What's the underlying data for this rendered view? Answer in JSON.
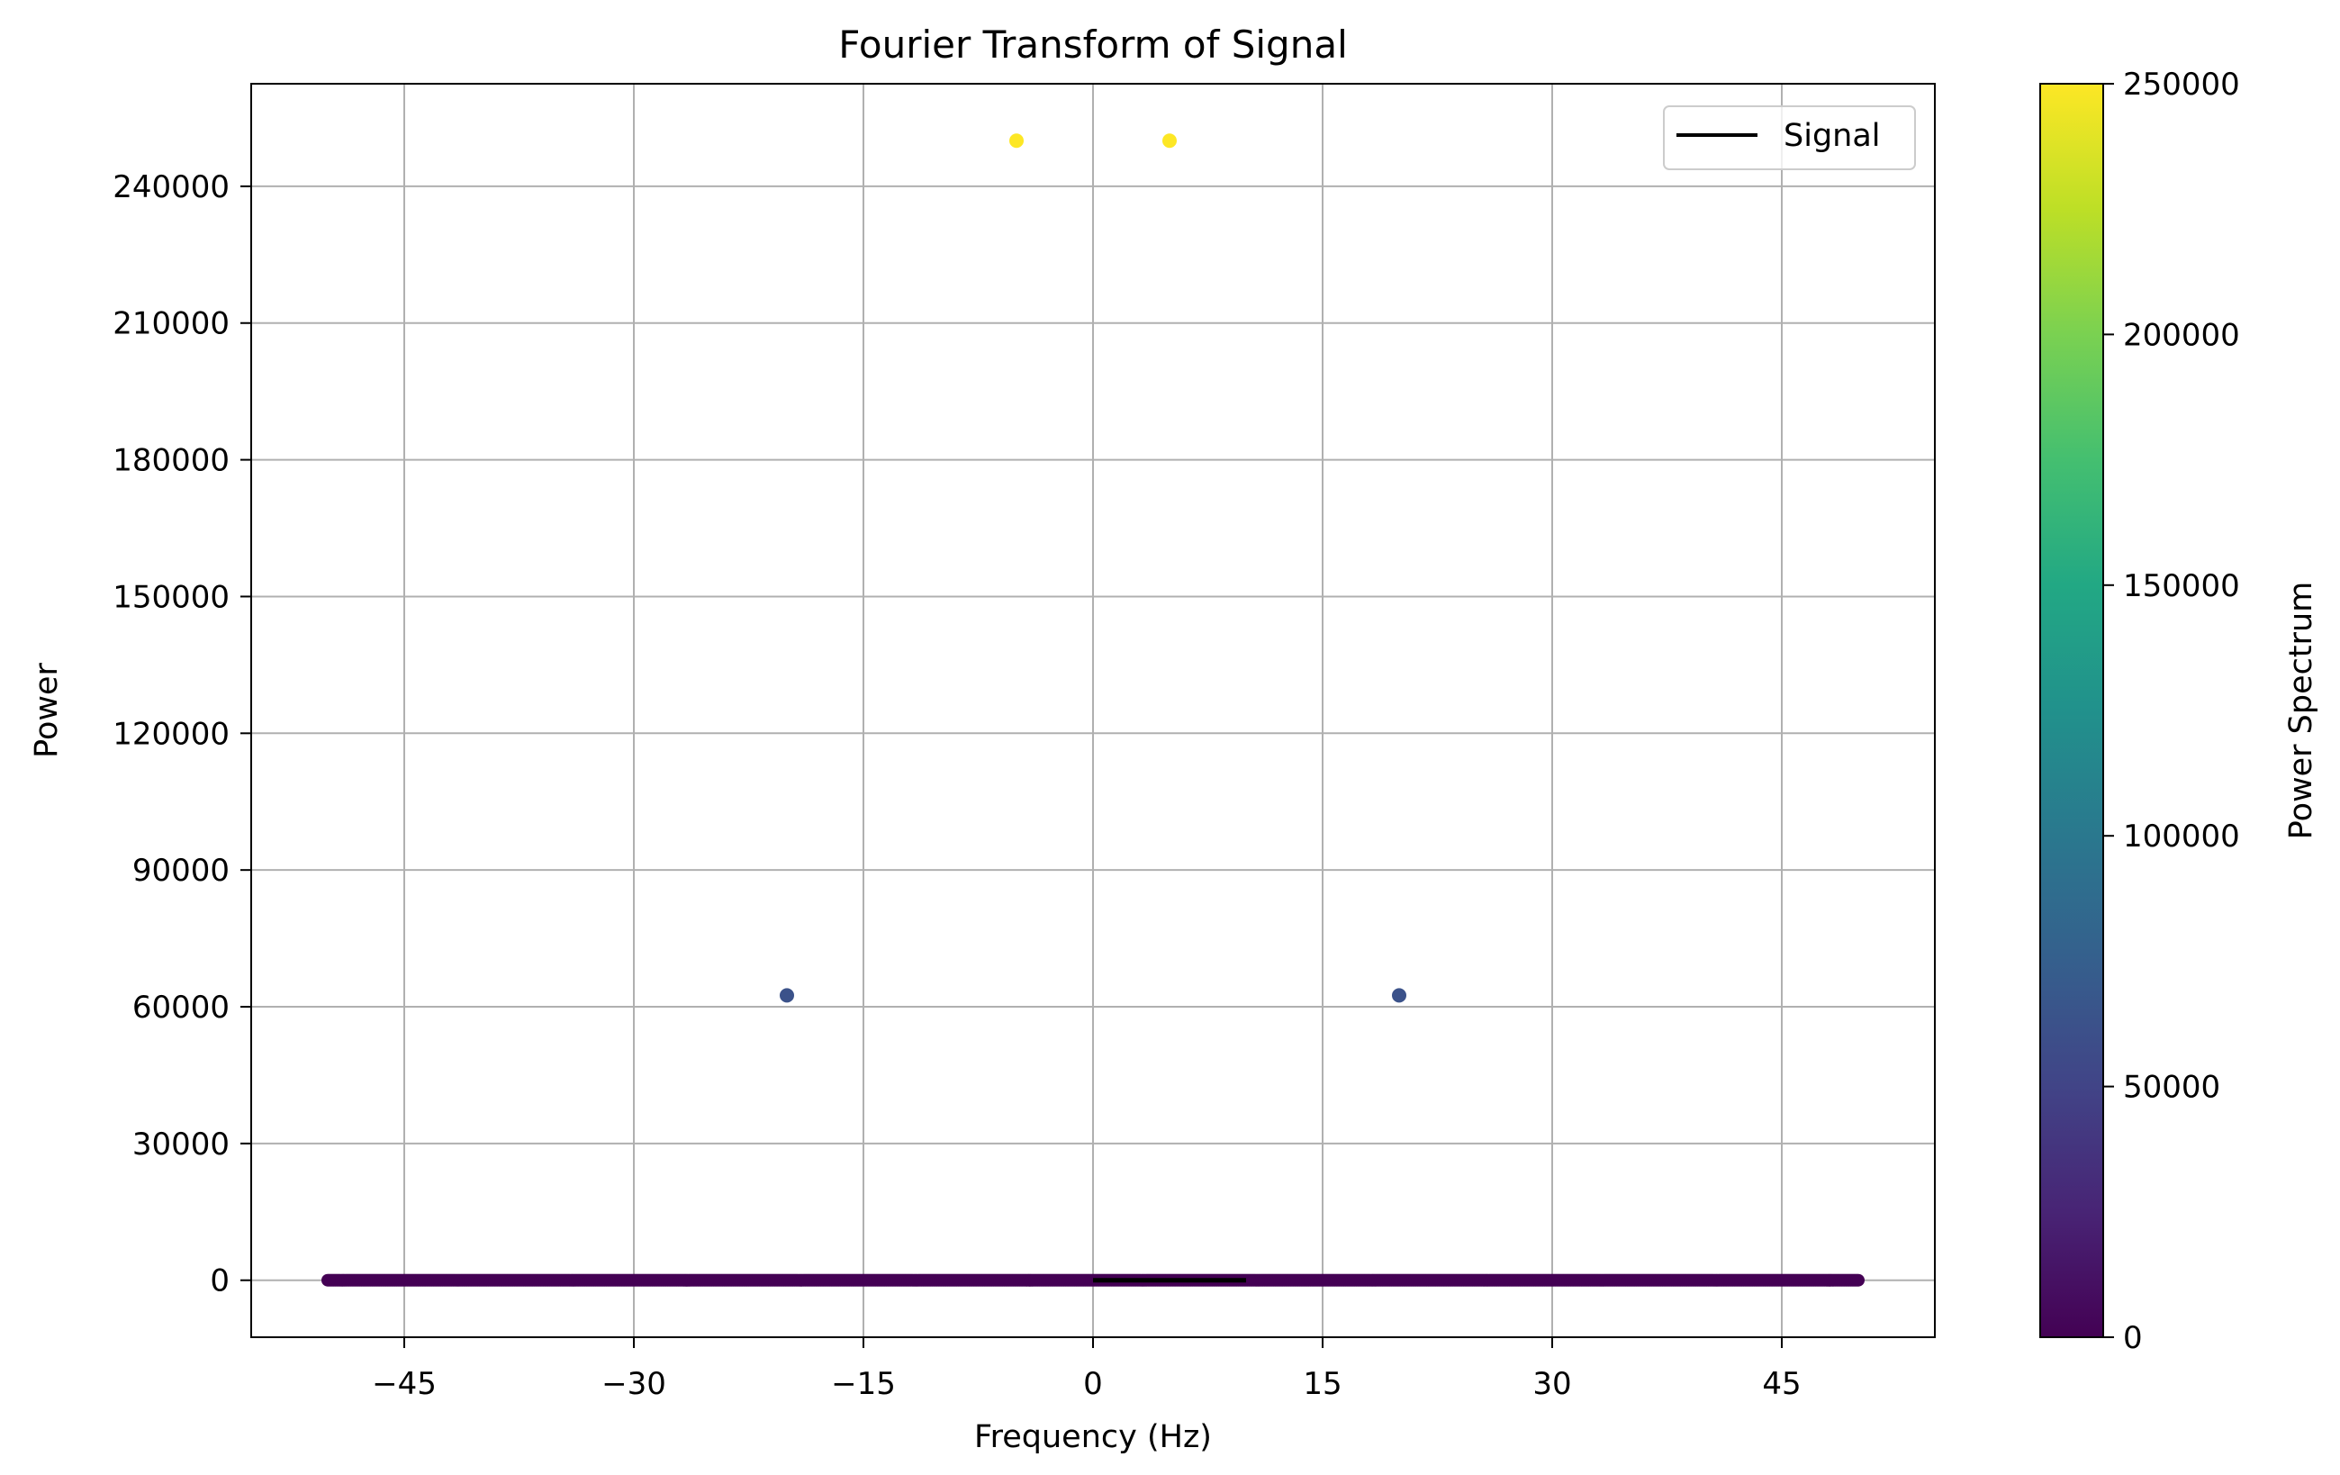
{
  "chart_data": {
    "type": "scatter",
    "title": "Fourier Transform of Signal",
    "xlabel": "Frequency (Hz)",
    "ylabel": "Power",
    "xlim": [
      -55,
      55
    ],
    "ylim": [
      -12500,
      262500
    ],
    "xticks": [
      -45,
      -30,
      -15,
      0,
      15,
      30,
      45
    ],
    "xtick_labels": [
      "−45",
      "−30",
      "−15",
      "0",
      "15",
      "30",
      "45"
    ],
    "yticks": [
      0,
      30000,
      60000,
      90000,
      120000,
      150000,
      180000,
      210000,
      240000
    ],
    "ytick_labels": [
      "0",
      "30000",
      "60000",
      "90000",
      "120000",
      "150000",
      "180000",
      "210000",
      "240000"
    ],
    "grid": true,
    "legend": {
      "position": "top-right",
      "entries": [
        {
          "label": "Signal",
          "color": "#000000"
        }
      ]
    },
    "colorbar": {
      "label": "Power Spectrum",
      "range": [
        0,
        250000
      ],
      "ticks": [
        0,
        50000,
        100000,
        150000,
        200000,
        250000
      ],
      "tick_labels": [
        "0",
        "50000",
        "100000",
        "150000",
        "200000",
        "250000"
      ],
      "colormap": "viridis"
    },
    "series": [
      {
        "kind": "points",
        "points": [
          {
            "x": -5,
            "y": 250000
          },
          {
            "x": 5,
            "y": 250000
          },
          {
            "x": -20,
            "y": 62500
          },
          {
            "x": 20,
            "y": 62500
          }
        ]
      },
      {
        "kind": "baseline-points",
        "x_range": [
          -50,
          50
        ],
        "step": 0.1,
        "y": 0
      },
      {
        "kind": "line",
        "name": "Signal",
        "color": "#000000",
        "x": [
          0,
          10
        ],
        "y": [
          0,
          0
        ]
      }
    ]
  }
}
